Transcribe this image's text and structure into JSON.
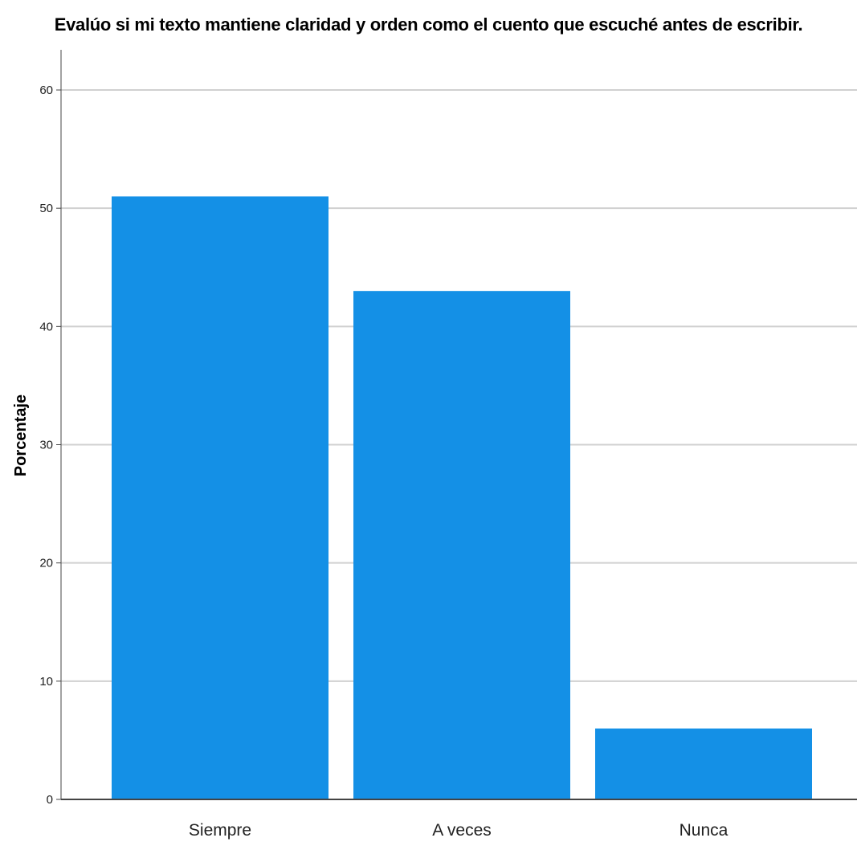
{
  "chart_data": {
    "type": "bar",
    "title": "Evalúo si mi texto mantiene claridad y orden como el cuento que escuché antes de escribir.",
    "xlabel": "",
    "ylabel": "Porcentaje",
    "categories": [
      "Siempre",
      "A veces",
      "Nunca"
    ],
    "values": [
      51,
      43,
      6
    ],
    "ylim": [
      0,
      60
    ],
    "yticks": [
      0,
      10,
      20,
      30,
      40,
      50,
      60
    ],
    "grid": true,
    "bar_color": "#1490E6",
    "grid_color": "#D0D0D0"
  }
}
